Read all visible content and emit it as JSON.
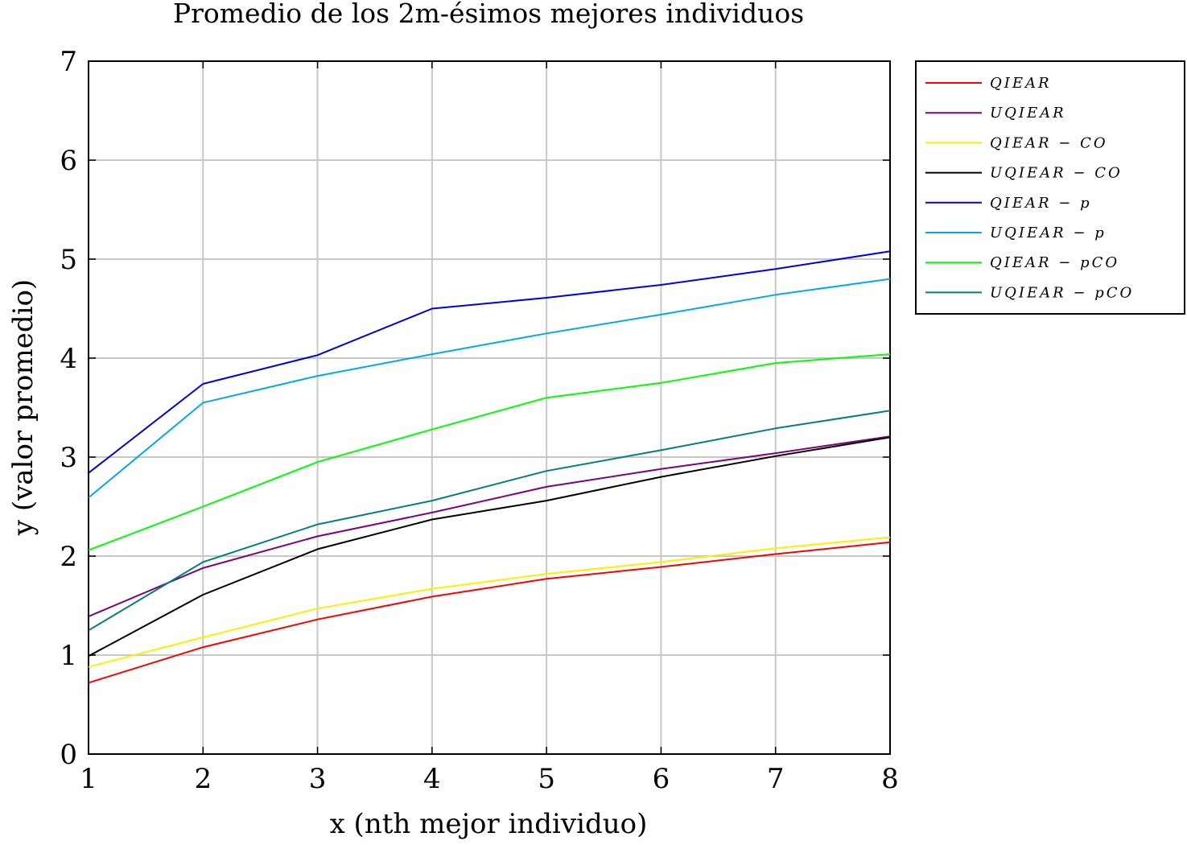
{
  "chart_data": {
    "type": "line",
    "title": "Promedio de los 2m-ésimos mejores individuos",
    "xlabel": "x (nth mejor individuo)",
    "ylabel": "y (valor promedio)",
    "xlim": [
      1,
      8
    ],
    "ylim": [
      0,
      7
    ],
    "grid": true,
    "legend_position": "outside-top-right",
    "x": [
      1,
      2,
      3,
      4,
      5,
      6,
      7,
      8
    ],
    "xticks": [
      "1",
      "2",
      "3",
      "4",
      "5",
      "6",
      "7",
      "8"
    ],
    "yticks": [
      "0",
      "1",
      "2",
      "3",
      "4",
      "5",
      "6",
      "7"
    ],
    "series": [
      {
        "name": "QIEAR",
        "color": "#ff0000",
        "values": [
          0.72,
          1.08,
          1.36,
          1.59,
          1.77,
          1.89,
          2.02,
          2.14
        ]
      },
      {
        "name": "UQIEAR",
        "color": "#800080",
        "values": [
          1.39,
          1.88,
          2.2,
          2.44,
          2.7,
          2.88,
          3.04,
          3.21
        ]
      },
      {
        "name": "QIEAR − CO",
        "color": "#ffee00",
        "values": [
          0.88,
          1.18,
          1.47,
          1.67,
          1.82,
          1.94,
          2.08,
          2.19
        ]
      },
      {
        "name": "UQIEAR − CO",
        "color": "#000000",
        "values": [
          0.99,
          1.61,
          2.07,
          2.37,
          2.56,
          2.8,
          3.01,
          3.2
        ]
      },
      {
        "name": "QIEAR − p",
        "color": "#0000ee",
        "values": [
          2.84,
          3.74,
          4.03,
          4.5,
          4.61,
          4.74,
          4.9,
          5.08
        ]
      },
      {
        "name": "UQIEAR − p",
        "color": "#00aaee",
        "values": [
          2.59,
          3.55,
          3.82,
          4.04,
          4.25,
          4.44,
          4.64,
          4.8
        ]
      },
      {
        "name": "QIEAR − pCO",
        "color": "#00ff00",
        "values": [
          2.06,
          2.5,
          2.95,
          3.28,
          3.6,
          3.75,
          3.95,
          4.04
        ]
      },
      {
        "name": "UQIEAR − pCO",
        "color": "#008080",
        "values": [
          1.25,
          1.94,
          2.32,
          2.56,
          2.86,
          3.07,
          3.29,
          3.47
        ]
      }
    ]
  }
}
